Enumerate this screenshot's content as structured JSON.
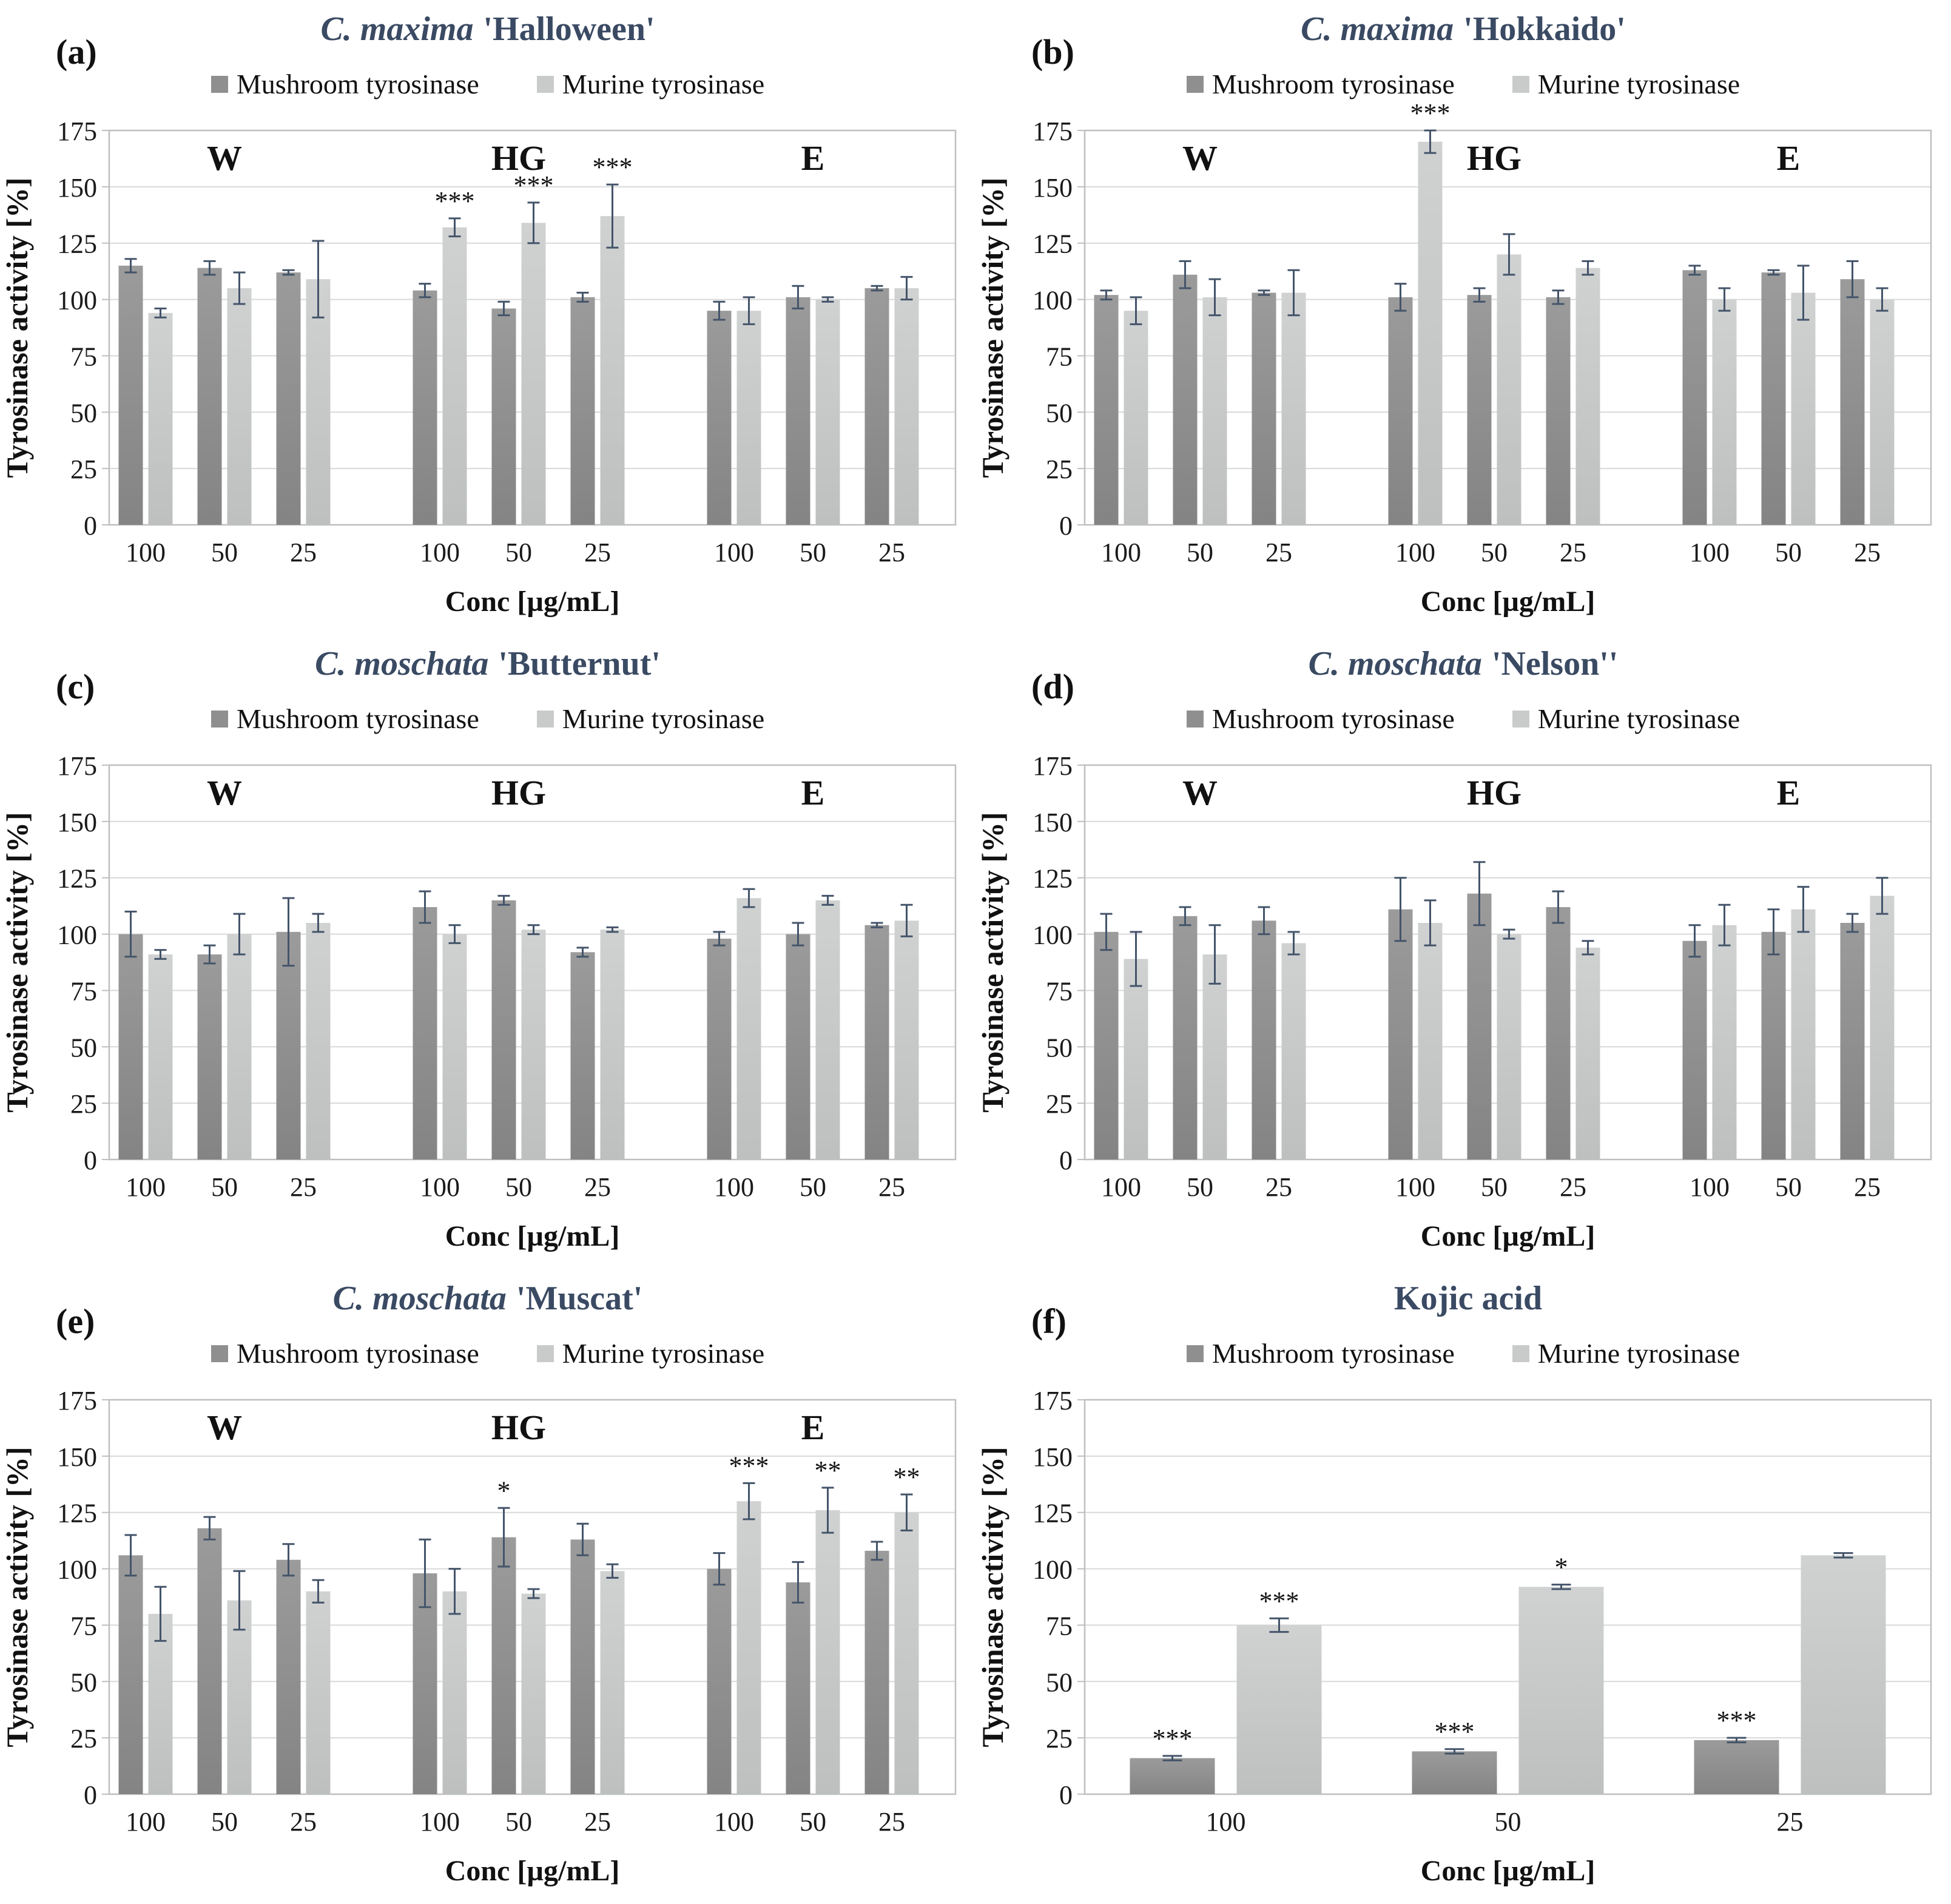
{
  "colors": {
    "mushroom_top": "#9b9b9b",
    "mushroom_bottom": "#848484",
    "murine_top": "#d0d2d2",
    "murine_bottom": "#bec0c0",
    "error_bar": "#44546a",
    "grid": "#d9d9d9",
    "plot_border": "#bfbfbf",
    "title": "#3a4a63",
    "axis_text": "#1a1a1a"
  },
  "chart_data": [
    {
      "type": "bar",
      "panel": "(a)",
      "title": "C. maxima 'Halloween'",
      "title_italic": "C. maxima",
      "title_plain": "'Halloween'",
      "series": [
        "Mushroom tyrosinase",
        "Murine tyrosinase"
      ],
      "ylabel": "Tyrosinase activity [%]",
      "xlabel": "Conc [µg/mL]",
      "ylim": [
        0,
        175
      ],
      "y_ticks": [
        0,
        25,
        50,
        75,
        100,
        125,
        150,
        175
      ],
      "groups": [
        {
          "label": "W",
          "points": [
            {
              "conc": "100",
              "mushroom": {
                "v": 115,
                "e": 3,
                "sig": ""
              },
              "murine": {
                "v": 94,
                "e": 2,
                "sig": ""
              }
            },
            {
              "conc": "50",
              "mushroom": {
                "v": 114,
                "e": 3,
                "sig": ""
              },
              "murine": {
                "v": 105,
                "e": 7,
                "sig": ""
              }
            },
            {
              "conc": "25",
              "mushroom": {
                "v": 112,
                "e": 1,
                "sig": ""
              },
              "murine": {
                "v": 109,
                "e": 17,
                "sig": ""
              }
            }
          ]
        },
        {
          "label": "HG",
          "points": [
            {
              "conc": "100",
              "mushroom": {
                "v": 104,
                "e": 3,
                "sig": ""
              },
              "murine": {
                "v": 132,
                "e": 4,
                "sig": "***"
              }
            },
            {
              "conc": "50",
              "mushroom": {
                "v": 96,
                "e": 3,
                "sig": ""
              },
              "murine": {
                "v": 134,
                "e": 9,
                "sig": "***"
              }
            },
            {
              "conc": "25",
              "mushroom": {
                "v": 101,
                "e": 2,
                "sig": ""
              },
              "murine": {
                "v": 137,
                "e": 14,
                "sig": "***"
              }
            }
          ]
        },
        {
          "label": "E",
          "points": [
            {
              "conc": "100",
              "mushroom": {
                "v": 95,
                "e": 4,
                "sig": ""
              },
              "murine": {
                "v": 95,
                "e": 6,
                "sig": ""
              }
            },
            {
              "conc": "50",
              "mushroom": {
                "v": 101,
                "e": 5,
                "sig": ""
              },
              "murine": {
                "v": 100,
                "e": 1,
                "sig": ""
              }
            },
            {
              "conc": "25",
              "mushroom": {
                "v": 105,
                "e": 1,
                "sig": ""
              },
              "murine": {
                "v": 105,
                "e": 5,
                "sig": ""
              }
            }
          ]
        }
      ]
    },
    {
      "type": "bar",
      "panel": "(b)",
      "title": "C. maxima 'Hokkaido'",
      "title_italic": "C. maxima",
      "title_plain": "'Hokkaido'",
      "series": [
        "Mushroom tyrosinase",
        "Murine tyrosinase"
      ],
      "ylabel": "Tyrosinase activity [%]",
      "xlabel": "Conc [µg/mL]",
      "ylim": [
        0,
        175
      ],
      "y_ticks": [
        0,
        25,
        50,
        75,
        100,
        125,
        150,
        175
      ],
      "groups": [
        {
          "label": "W",
          "points": [
            {
              "conc": "100",
              "mushroom": {
                "v": 102,
                "e": 2,
                "sig": ""
              },
              "murine": {
                "v": 95,
                "e": 6,
                "sig": ""
              }
            },
            {
              "conc": "50",
              "mushroom": {
                "v": 111,
                "e": 6,
                "sig": ""
              },
              "murine": {
                "v": 101,
                "e": 8,
                "sig": ""
              }
            },
            {
              "conc": "25",
              "mushroom": {
                "v": 103,
                "e": 1,
                "sig": ""
              },
              "murine": {
                "v": 103,
                "e": 10,
                "sig": ""
              }
            }
          ]
        },
        {
          "label": "HG",
          "points": [
            {
              "conc": "100",
              "mushroom": {
                "v": 101,
                "e": 6,
                "sig": ""
              },
              "murine": {
                "v": 170,
                "e": 5,
                "sig": "***"
              }
            },
            {
              "conc": "50",
              "mushroom": {
                "v": 102,
                "e": 3,
                "sig": ""
              },
              "murine": {
                "v": 120,
                "e": 9,
                "sig": ""
              }
            },
            {
              "conc": "25",
              "mushroom": {
                "v": 101,
                "e": 3,
                "sig": ""
              },
              "murine": {
                "v": 114,
                "e": 3,
                "sig": ""
              }
            }
          ]
        },
        {
          "label": "E",
          "points": [
            {
              "conc": "100",
              "mushroom": {
                "v": 113,
                "e": 2,
                "sig": ""
              },
              "murine": {
                "v": 100,
                "e": 5,
                "sig": ""
              }
            },
            {
              "conc": "50",
              "mushroom": {
                "v": 112,
                "e": 1,
                "sig": ""
              },
              "murine": {
                "v": 103,
                "e": 12,
                "sig": ""
              }
            },
            {
              "conc": "25",
              "mushroom": {
                "v": 109,
                "e": 8,
                "sig": ""
              },
              "murine": {
                "v": 100,
                "e": 5,
                "sig": ""
              }
            }
          ]
        }
      ]
    },
    {
      "type": "bar",
      "panel": "(c)",
      "title": "C. moschata 'Butternut'",
      "title_italic": "C. moschata",
      "title_plain": "'Butternut'",
      "series": [
        "Mushroom tyrosinase",
        "Murine tyrosinase"
      ],
      "ylabel": "Tyrosinase activity [%]",
      "xlabel": "Conc [µg/mL]",
      "ylim": [
        0,
        175
      ],
      "y_ticks": [
        0,
        25,
        50,
        75,
        100,
        125,
        150,
        175
      ],
      "groups": [
        {
          "label": "W",
          "points": [
            {
              "conc": "100",
              "mushroom": {
                "v": 100,
                "e": 10,
                "sig": ""
              },
              "murine": {
                "v": 91,
                "e": 2,
                "sig": ""
              }
            },
            {
              "conc": "50",
              "mushroom": {
                "v": 91,
                "e": 4,
                "sig": ""
              },
              "murine": {
                "v": 100,
                "e": 9,
                "sig": ""
              }
            },
            {
              "conc": "25",
              "mushroom": {
                "v": 101,
                "e": 15,
                "sig": ""
              },
              "murine": {
                "v": 105,
                "e": 4,
                "sig": ""
              }
            }
          ]
        },
        {
          "label": "HG",
          "points": [
            {
              "conc": "100",
              "mushroom": {
                "v": 112,
                "e": 7,
                "sig": ""
              },
              "murine": {
                "v": 100,
                "e": 4,
                "sig": ""
              }
            },
            {
              "conc": "50",
              "mushroom": {
                "v": 115,
                "e": 2,
                "sig": ""
              },
              "murine": {
                "v": 102,
                "e": 2,
                "sig": ""
              }
            },
            {
              "conc": "25",
              "mushroom": {
                "v": 92,
                "e": 2,
                "sig": ""
              },
              "murine": {
                "v": 102,
                "e": 1,
                "sig": ""
              }
            }
          ]
        },
        {
          "label": "E",
          "points": [
            {
              "conc": "100",
              "mushroom": {
                "v": 98,
                "e": 3,
                "sig": ""
              },
              "murine": {
                "v": 116,
                "e": 4,
                "sig": ""
              }
            },
            {
              "conc": "50",
              "mushroom": {
                "v": 100,
                "e": 5,
                "sig": ""
              },
              "murine": {
                "v": 115,
                "e": 2,
                "sig": ""
              }
            },
            {
              "conc": "25",
              "mushroom": {
                "v": 104,
                "e": 1,
                "sig": ""
              },
              "murine": {
                "v": 106,
                "e": 7,
                "sig": ""
              }
            }
          ]
        }
      ]
    },
    {
      "type": "bar",
      "panel": "(d)",
      "title": "C. moschata 'Nelson''",
      "title_italic": "C. moschata",
      "title_plain": "'Nelson''",
      "series": [
        "Mushroom tyrosinase",
        "Murine tyrosinase"
      ],
      "ylabel": "Tyrosinase activity [%]",
      "xlabel": "Conc [µg/mL]",
      "ylim": [
        0,
        175
      ],
      "y_ticks": [
        0,
        25,
        50,
        75,
        100,
        125,
        150,
        175
      ],
      "groups": [
        {
          "label": "W",
          "points": [
            {
              "conc": "100",
              "mushroom": {
                "v": 101,
                "e": 8,
                "sig": ""
              },
              "murine": {
                "v": 89,
                "e": 12,
                "sig": ""
              }
            },
            {
              "conc": "50",
              "mushroom": {
                "v": 108,
                "e": 4,
                "sig": ""
              },
              "murine": {
                "v": 91,
                "e": 13,
                "sig": ""
              }
            },
            {
              "conc": "25",
              "mushroom": {
                "v": 106,
                "e": 6,
                "sig": ""
              },
              "murine": {
                "v": 96,
                "e": 5,
                "sig": ""
              }
            }
          ]
        },
        {
          "label": "HG",
          "points": [
            {
              "conc": "100",
              "mushroom": {
                "v": 111,
                "e": 14,
                "sig": ""
              },
              "murine": {
                "v": 105,
                "e": 10,
                "sig": ""
              }
            },
            {
              "conc": "50",
              "mushroom": {
                "v": 118,
                "e": 14,
                "sig": ""
              },
              "murine": {
                "v": 100,
                "e": 2,
                "sig": ""
              }
            },
            {
              "conc": "25",
              "mushroom": {
                "v": 112,
                "e": 7,
                "sig": ""
              },
              "murine": {
                "v": 94,
                "e": 3,
                "sig": ""
              }
            }
          ]
        },
        {
          "label": "E",
          "points": [
            {
              "conc": "100",
              "mushroom": {
                "v": 97,
                "e": 7,
                "sig": ""
              },
              "murine": {
                "v": 104,
                "e": 9,
                "sig": ""
              }
            },
            {
              "conc": "50",
              "mushroom": {
                "v": 101,
                "e": 10,
                "sig": ""
              },
              "murine": {
                "v": 111,
                "e": 10,
                "sig": ""
              }
            },
            {
              "conc": "25",
              "mushroom": {
                "v": 105,
                "e": 4,
                "sig": ""
              },
              "murine": {
                "v": 117,
                "e": 8,
                "sig": ""
              }
            }
          ]
        }
      ]
    },
    {
      "type": "bar",
      "panel": "(e)",
      "title": "C. moschata 'Muscat'",
      "title_italic": "C. moschata",
      "title_plain": "'Muscat'",
      "series": [
        "Mushroom tyrosinase",
        "Murine tyrosinase"
      ],
      "ylabel": "Tyrosinase activity [%]",
      "xlabel": "Conc [µg/mL]",
      "ylim": [
        0,
        175
      ],
      "y_ticks": [
        0,
        25,
        50,
        75,
        100,
        125,
        150,
        175
      ],
      "groups": [
        {
          "label": "W",
          "points": [
            {
              "conc": "100",
              "mushroom": {
                "v": 106,
                "e": 9,
                "sig": ""
              },
              "murine": {
                "v": 80,
                "e": 12,
                "sig": ""
              }
            },
            {
              "conc": "50",
              "mushroom": {
                "v": 118,
                "e": 5,
                "sig": ""
              },
              "murine": {
                "v": 86,
                "e": 13,
                "sig": ""
              }
            },
            {
              "conc": "25",
              "mushroom": {
                "v": 104,
                "e": 7,
                "sig": ""
              },
              "murine": {
                "v": 90,
                "e": 5,
                "sig": ""
              }
            }
          ]
        },
        {
          "label": "HG",
          "points": [
            {
              "conc": "100",
              "mushroom": {
                "v": 98,
                "e": 15,
                "sig": ""
              },
              "murine": {
                "v": 90,
                "e": 10,
                "sig": ""
              }
            },
            {
              "conc": "50",
              "mushroom": {
                "v": 114,
                "e": 13,
                "sig": "*"
              },
              "murine": {
                "v": 89,
                "e": 2,
                "sig": ""
              }
            },
            {
              "conc": "25",
              "mushroom": {
                "v": 113,
                "e": 7,
                "sig": ""
              },
              "murine": {
                "v": 99,
                "e": 3,
                "sig": ""
              }
            }
          ]
        },
        {
          "label": "E",
          "points": [
            {
              "conc": "100",
              "mushroom": {
                "v": 100,
                "e": 7,
                "sig": ""
              },
              "murine": {
                "v": 130,
                "e": 8,
                "sig": "***"
              }
            },
            {
              "conc": "50",
              "mushroom": {
                "v": 94,
                "e": 9,
                "sig": ""
              },
              "murine": {
                "v": 126,
                "e": 10,
                "sig": "**"
              }
            },
            {
              "conc": "25",
              "mushroom": {
                "v": 108,
                "e": 4,
                "sig": ""
              },
              "murine": {
                "v": 125,
                "e": 8,
                "sig": "**"
              }
            }
          ]
        }
      ]
    },
    {
      "type": "bar",
      "panel": "(f)",
      "title": "Kojic acid",
      "title_italic": "",
      "title_plain": "Kojic acid",
      "series": [
        "Mushroom tyrosinase",
        "Murine tyrosinase"
      ],
      "ylabel": "Tyrosinase activity [%]",
      "xlabel": "Conc [µg/mL]",
      "ylim": [
        0,
        175
      ],
      "y_ticks": [
        0,
        25,
        50,
        75,
        100,
        125,
        150,
        175
      ],
      "groups": [
        {
          "label": "",
          "points": [
            {
              "conc": "100",
              "mushroom": {
                "v": 16,
                "e": 1,
                "sig": "***"
              },
              "murine": {
                "v": 75,
                "e": 3,
                "sig": "***"
              }
            },
            {
              "conc": "50",
              "mushroom": {
                "v": 19,
                "e": 1,
                "sig": "***"
              },
              "murine": {
                "v": 92,
                "e": 1,
                "sig": "*"
              }
            },
            {
              "conc": "25",
              "mushroom": {
                "v": 24,
                "e": 1,
                "sig": "***"
              },
              "murine": {
                "v": 106,
                "e": 1,
                "sig": ""
              }
            }
          ]
        }
      ]
    }
  ]
}
